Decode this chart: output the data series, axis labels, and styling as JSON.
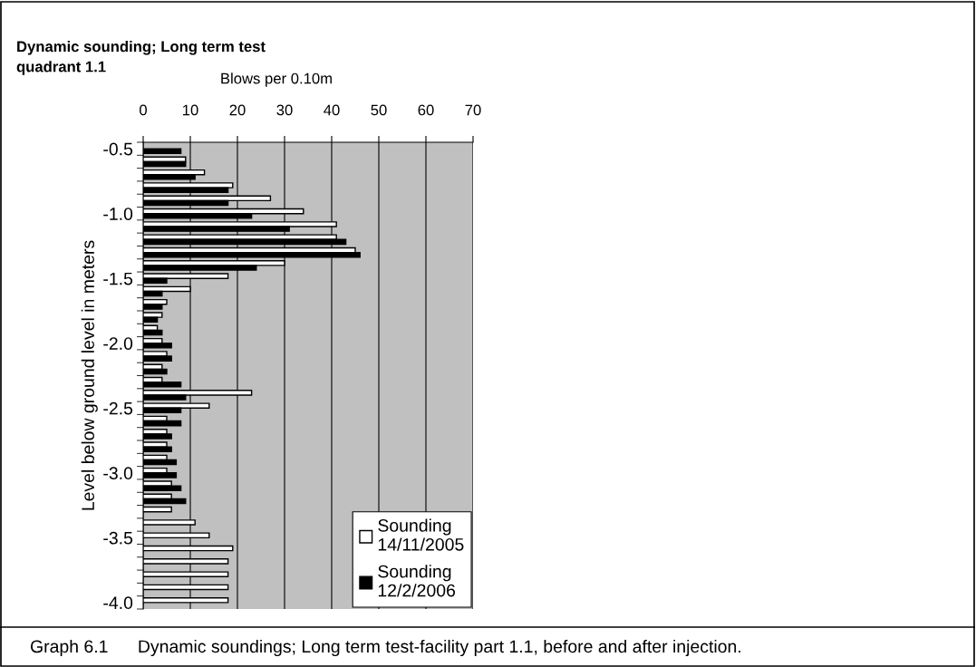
{
  "chart_data": {
    "type": "bar",
    "orientation": "horizontal",
    "title": "Dynamic sounding; Long term test\nquadrant 1.1",
    "xlabel": "Blows per 0.10m",
    "ylabel": "Level below ground level in meters",
    "annotations": [
      "Graph 6.1      Dynamic soundings; Long term test-facility part 1.1, before and after injection."
    ],
    "categories": [
      "-0.5",
      null,
      null,
      null,
      null,
      "-1.0",
      null,
      null,
      null,
      null,
      "-1.5",
      null,
      null,
      null,
      null,
      "-2.0",
      null,
      null,
      null,
      null,
      "-2.5",
      null,
      null,
      null,
      null,
      "-3.0",
      null,
      null,
      null,
      null,
      "-3.5",
      null,
      null,
      null,
      null,
      "-4.0"
    ],
    "series": [
      {
        "name": "Sounding\n14/11/2005",
        "color": "#ffffff",
        "values": [
          null,
          9,
          13,
          19,
          27,
          34,
          41,
          41,
          45,
          30,
          18,
          10,
          5,
          4,
          3,
          4,
          5,
          4,
          4,
          23,
          14,
          5,
          5,
          5,
          5,
          5,
          6,
          6,
          6,
          11,
          14,
          19,
          18,
          18,
          18,
          18
        ]
      },
      {
        "name": "Sounding\n12/2/2006",
        "color": "#000000",
        "values": [
          8,
          9,
          11,
          18,
          18,
          23,
          31,
          43,
          46,
          24,
          5,
          4,
          4,
          3,
          4,
          6,
          6,
          5,
          8,
          9,
          8,
          8,
          6,
          6,
          7,
          7,
          8,
          9,
          null,
          null,
          null,
          null,
          null,
          null,
          null,
          null
        ]
      }
    ],
    "xlim": [
      0,
      70
    ],
    "xticks": [
      0,
      10,
      20,
      30,
      40,
      50,
      60,
      70
    ],
    "grid": "x",
    "legend": "bottom right"
  }
}
